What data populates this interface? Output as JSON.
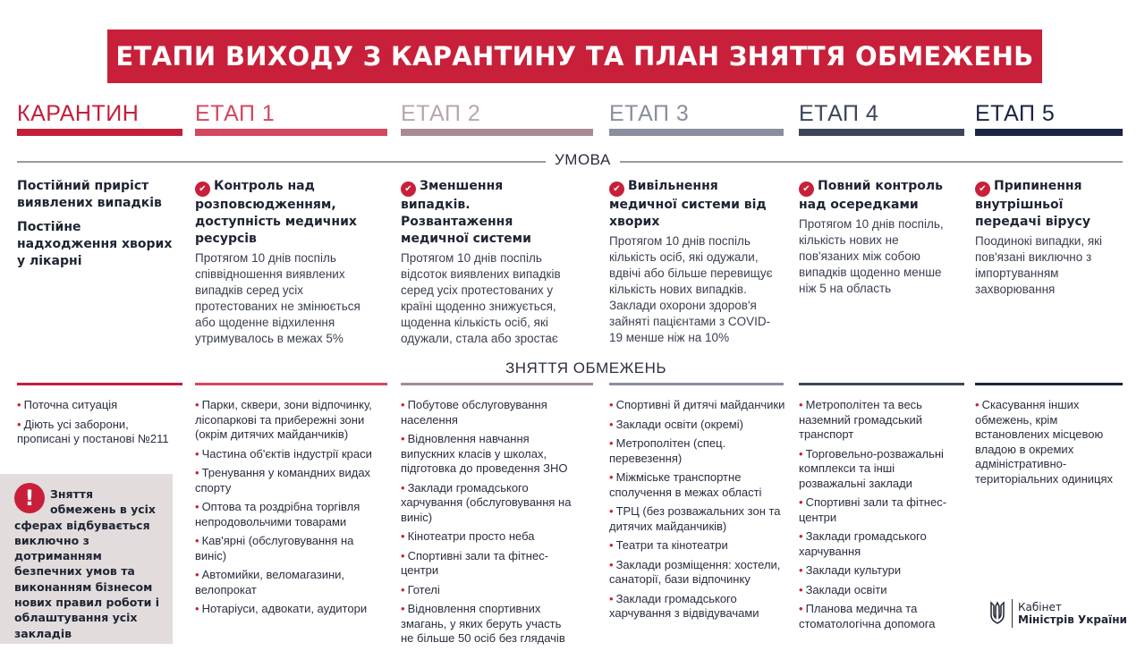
{
  "title": "ЕТАПИ ВИХОДУ З КАРАНТИНУ ТА ПЛАН ЗНЯТТЯ ОБМЕЖЕНЬ",
  "sections": {
    "condition": "УМОВА",
    "restrictions": "ЗНЯТТЯ ОБМЕЖЕНЬ"
  },
  "colors": {
    "brand": "#c8203a",
    "stages": [
      "#c41e3a",
      "#d4475f",
      "#a88a96",
      "#8a8e9e",
      "#3d4659",
      "#1b2440"
    ]
  },
  "stages": [
    {
      "name": "КАРАНТИН",
      "condition_lines": [
        "Постійний приріст виявлених випадків",
        "Постійне надходження хворих у лікарні"
      ],
      "condition_title": "",
      "condition_text": "",
      "items": [
        "Поточна ситуація",
        "Діють усі заборони, прописані у постанові №211"
      ]
    },
    {
      "name": "ЕТАП 1",
      "condition_title": "Контроль над розповсюдженням, доступність медичних ресурсів",
      "condition_text": "Протягом 10 днів поспіль співвідношення виявлених випадків серед усіх протестованих не змінюється або щоденне відхилення утримувалось в межах 5%",
      "items": [
        "Парки, сквери, зони відпочинку, лісопаркові та прибережні зони (окрім дитячих майданчиків)",
        "Частина об'єктів індустрії краси",
        "Тренування у командних видах спорту",
        "Оптова та роздрібна торгівля непродовольчими товарами",
        "Кав'ярні (обслуговування на виніс)",
        "Автомийки, веломагазини, велопрокат",
        "Нотаріуси, адвокати, аудитори"
      ]
    },
    {
      "name": "ЕТАП 2",
      "condition_title": "Зменшення випадків. Розвантаження медичної системи",
      "condition_text": "Протягом 10 днів поспіль відсоток виявлених випадків серед усіх протестованих у країні щоденно знижується, щоденна кількість осіб, які одужали, стала або зростає",
      "items": [
        "Побутове обслуговування населення",
        "Відновлення навчання випускних класів у школах, підготовка до проведення ЗНО",
        "Заклади громадського харчування (обслуговування на виніс)",
        "Кінотеатри просто неба",
        "Спортивні зали та фітнес-центри",
        "Готелі",
        "Відновлення спортивних змагань, у яких беруть участь не більше 50 осіб без глядачів"
      ]
    },
    {
      "name": "ЕТАП 3",
      "condition_title": "Вивільнення медичної системи від хворих",
      "condition_text": "Протягом 10 днів поспіль кількість осіб, які одужали, вдвічі або більше перевищує кількість нових випадків. Заклади охорони здоров'я зайняті пацієнтами з COVID-19 менше ніж на 10%",
      "items": [
        "Спортивні й дитячі майданчики",
        "Заклади освіти (окремі)",
        "Метрополітен (спец. перевезення)",
        "Міжміське транспортне сполучення в межах області",
        "ТРЦ (без розважальних зон та дитячих майданчиків)",
        "Театри та кінотеатри",
        "Заклади розміщення: хостели, санаторії, бази відпочинку",
        "Заклади громадського харчування з відвідувачами"
      ]
    },
    {
      "name": "ЕТАП 4",
      "condition_title": "Повний контроль над осередками",
      "condition_text": "Протягом 10 днів поспіль, кількість нових не пов'язаних між собою випадків щоденно менше ніж 5 на область",
      "items": [
        "Метрополітен та весь наземний громадський транспорт",
        "Торговельно-розважальні комплекси та інші розважальні заклади",
        "Спортивні зали та фітнес-центри",
        "Заклади громадського харчування",
        "Заклади культури",
        "Заклади освіти",
        "Планова медична та стоматологічна допомога"
      ]
    },
    {
      "name": "ЕТАП 5",
      "condition_title": "Припинення внутрішньої передачі вірусу",
      "condition_text": "Поодинокі випадки, які пов'язані виключно з імпортуванням захворювання",
      "items": [
        "Скасування інших обмежень, крім встановлених місцевою владою в окремих адміністративно-територіальних одиницях"
      ]
    }
  ],
  "notice": "Зняття обмежень в усіх сферах відбувається виключно з дотриманням безпечних умов та виконанням бізнесом нових правил роботи і облаштування усіх закладів",
  "logo": {
    "line1": "Кабінет",
    "line2": "Міністрів України"
  }
}
